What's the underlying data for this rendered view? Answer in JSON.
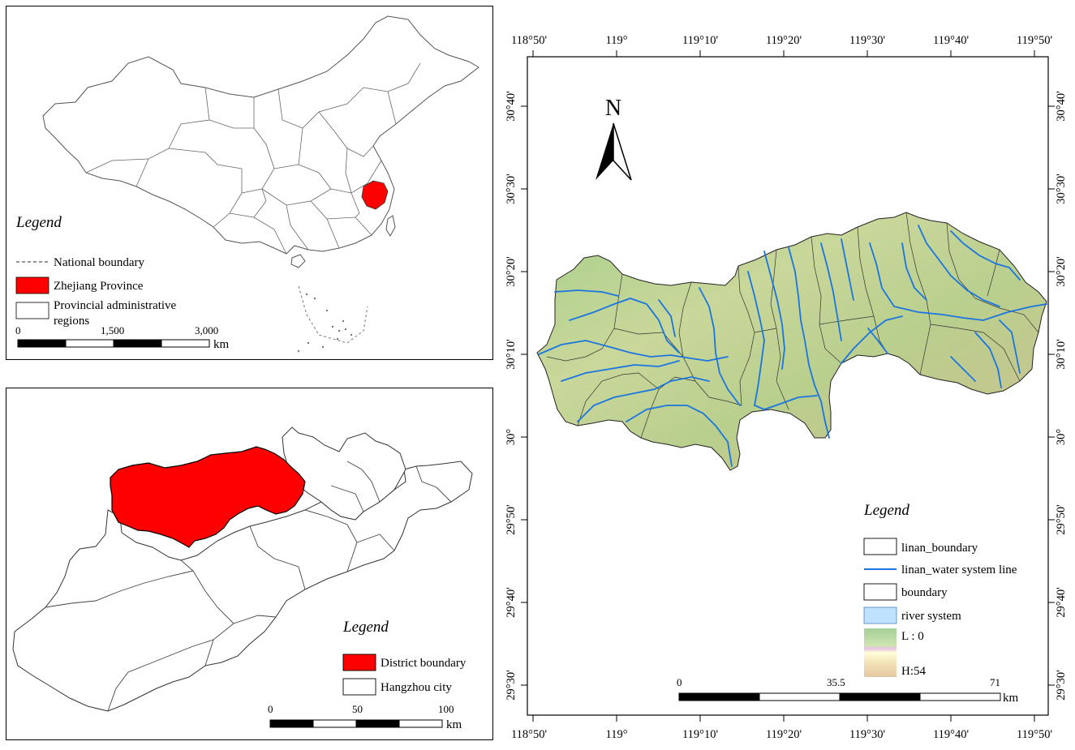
{
  "national_map": {
    "legend_title": "Legend",
    "legend_items": [
      {
        "label": "National boundary"
      },
      {
        "label": "Zhejiang Province"
      },
      {
        "label": "Provincial administrative",
        "label_line2": "regions"
      }
    ],
    "scale_bar": {
      "ticks": [
        "0",
        "1,500",
        "3,000"
      ],
      "unit": "km"
    },
    "colors": {
      "highlight": "#ff0000",
      "boundary": "#555555"
    }
  },
  "city_map": {
    "legend_title": "Legend",
    "legend_items": [
      {
        "label": "District boundary"
      },
      {
        "label": "Hangzhou city"
      }
    ],
    "scale_bar": {
      "ticks": [
        "0",
        "50",
        "100"
      ],
      "unit": "km"
    },
    "colors": {
      "district": "#ff0000"
    }
  },
  "detail_map": {
    "north_label": "N",
    "top_ticks": [
      "118°50'",
      "119°",
      "119°10'",
      "119°20'",
      "119°30'",
      "119°40'",
      "119°50'"
    ],
    "bottom_ticks": [
      "118°50'",
      "119°",
      "119°10'",
      "119°20'",
      "119°30'",
      "119°40'",
      "119°50'"
    ],
    "left_ticks": [
      "30°40'",
      "30°30'",
      "30°20'",
      "30°10'",
      "30°",
      "29°50'",
      "29°40'",
      "29°30'"
    ],
    "right_ticks": [
      "30°40'",
      "30°30'",
      "30°20'",
      "30°10'",
      "30°",
      "29°50'",
      "29°40'",
      "29°30'"
    ],
    "legend_title": "Legend",
    "legend_items": [
      {
        "label": "linan_boundary"
      },
      {
        "label": "linan_water system line"
      },
      {
        "label": "boundary"
      },
      {
        "label": "river system"
      },
      {
        "label": "L : 0"
      },
      {
        "label": "H:54"
      }
    ],
    "scale_bar": {
      "ticks": [
        "0",
        "35.5",
        "71"
      ],
      "unit": "km"
    },
    "colors": {
      "river": "#1a75e0",
      "terrain_low": "#9ccf8c",
      "terrain_high": "#d9b58a",
      "river_system_fill": "#bfe3ff"
    }
  }
}
